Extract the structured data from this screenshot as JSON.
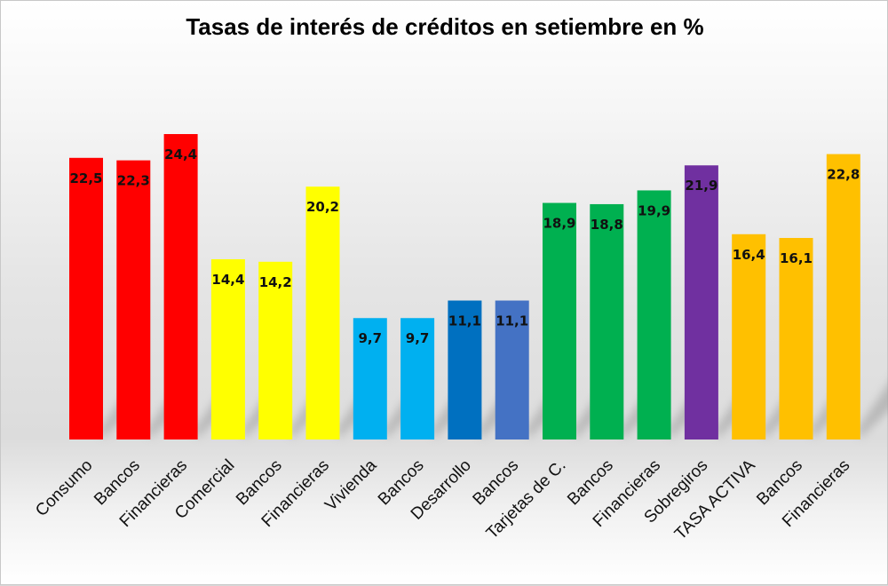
{
  "chart_data": {
    "type": "bar",
    "title": "Tasas de interés de créditos en setiembre en %",
    "xlabel": "",
    "ylabel": "",
    "ylim": [
      0,
      24.4
    ],
    "grid": false,
    "legend": "none",
    "categories": [
      "Consumo",
      "Bancos",
      "Financieras",
      "Comercial",
      "Bancos",
      "Financieras",
      "Vivienda",
      "Bancos",
      "Desarrollo",
      "Bancos",
      "Tarjetas de C.",
      "Bancos",
      "Financieras",
      "Sobregiros",
      "TASA ACTIVA",
      "Bancos",
      "Financieras"
    ],
    "values": [
      22.5,
      22.3,
      24.4,
      14.4,
      14.2,
      20.2,
      9.7,
      9.7,
      11.1,
      11.1,
      18.9,
      18.8,
      19.9,
      21.9,
      16.4,
      16.1,
      22.8
    ],
    "value_labels": [
      "22,5",
      "22,3",
      "24,4",
      "14,4",
      "14,2",
      "20,2",
      "9,7",
      "9,7",
      "11,1",
      "11,1",
      "18,9",
      "18,8",
      "19,9",
      "21,9",
      "16,4",
      "16,1",
      "22,8"
    ],
    "colors": [
      "#ff0000",
      "#ff0000",
      "#ff0000",
      "#ffff00",
      "#ffff00",
      "#ffff00",
      "#00b0f0",
      "#00b0f0",
      "#0070c0",
      "#4472c4",
      "#00b050",
      "#00b050",
      "#00b050",
      "#7030a0",
      "#ffc000",
      "#ffc000",
      "#ffc000"
    ]
  }
}
